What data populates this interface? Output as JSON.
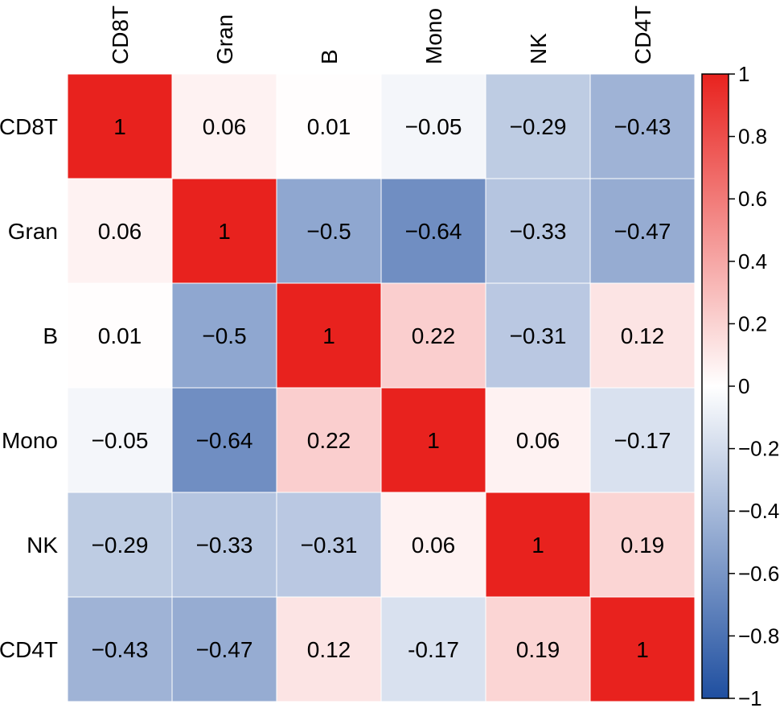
{
  "chart_data": {
    "type": "heatmap",
    "title": "",
    "xlabel": "",
    "ylabel": "",
    "rows": [
      "CD8T",
      "Gran",
      "B",
      "Mono",
      "NK",
      "CD4T"
    ],
    "columns": [
      "CD8T",
      "Gran",
      "B",
      "Mono",
      "NK",
      "CD4T"
    ],
    "values": [
      [
        1,
        0.06,
        0.01,
        -0.05,
        -0.29,
        -0.43
      ],
      [
        0.06,
        1,
        -0.5,
        -0.64,
        -0.33,
        -0.47
      ],
      [
        0.01,
        -0.5,
        1,
        0.22,
        -0.31,
        0.12
      ],
      [
        -0.05,
        -0.64,
        0.22,
        1,
        0.06,
        -0.17
      ],
      [
        -0.29,
        -0.33,
        -0.31,
        0.06,
        1,
        0.19
      ],
      [
        -0.43,
        -0.47,
        0.12,
        -0.17,
        0.19,
        1
      ]
    ],
    "cell_labels": [
      [
        "1",
        "0.06",
        "0.01",
        "−0.05",
        "−0.29",
        "−0.43"
      ],
      [
        "0.06",
        "1",
        "−0.5",
        "−0.64",
        "−0.33",
        "−0.47"
      ],
      [
        "0.01",
        "−0.5",
        "1",
        "0.22",
        "−0.31",
        "0.12"
      ],
      [
        "−0.05",
        "−0.64",
        "0.22",
        "1",
        "0.06",
        "−0.17"
      ],
      [
        "−0.29",
        "−0.33",
        "−0.31",
        "0.06",
        "1",
        "0.19"
      ],
      [
        "−0.43",
        "−0.47",
        "0.12",
        "-0.17",
        "0.19",
        "1"
      ]
    ],
    "colorbar": {
      "range": [
        -1,
        1
      ],
      "ticks": [
        1,
        0.8,
        0.6,
        0.4,
        0.2,
        0,
        -0.2,
        -0.4,
        -0.6,
        -0.8,
        -1
      ],
      "tick_labels": [
        "1",
        "0.8",
        "0.6",
        "0.4",
        "0.2",
        "0",
        "−0.2",
        "−0.4",
        "−0.6",
        "−0.8",
        "−1"
      ],
      "colors": {
        "negative": "#1f4fa0",
        "zero": "#ffffff",
        "positive": "#e8221e"
      }
    },
    "grid": true,
    "legend": "right"
  }
}
